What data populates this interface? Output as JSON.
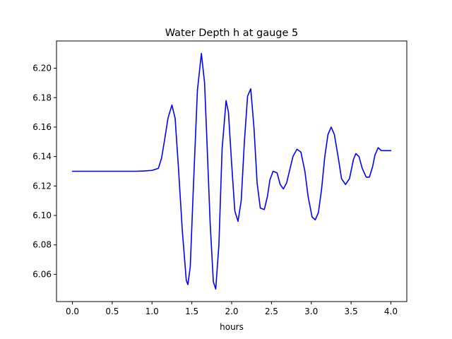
{
  "chart_data": {
    "type": "line",
    "title": "Water Depth h at gauge 5",
    "xlabel": "hours",
    "ylabel": "",
    "xlim": [
      -0.2,
      4.2
    ],
    "ylim": [
      6.0415,
      6.2185
    ],
    "xticks": [
      "0.0",
      "0.5",
      "1.0",
      "1.5",
      "2.0",
      "2.5",
      "3.0",
      "3.5",
      "4.0"
    ],
    "yticks": [
      "6.06",
      "6.08",
      "6.10",
      "6.12",
      "6.14",
      "6.16",
      "6.18",
      "6.20"
    ],
    "grid": false,
    "series": [
      {
        "color": "#0000ff",
        "x": [
          0.0,
          0.2,
          0.4,
          0.6,
          0.8,
          0.9,
          1.0,
          1.08,
          1.12,
          1.16,
          1.2,
          1.25,
          1.29,
          1.33,
          1.38,
          1.43,
          1.45,
          1.48,
          1.52,
          1.57,
          1.62,
          1.66,
          1.69,
          1.73,
          1.77,
          1.8,
          1.84,
          1.88,
          1.93,
          1.96,
          2.0,
          2.04,
          2.08,
          2.12,
          2.16,
          2.2,
          2.24,
          2.28,
          2.32,
          2.36,
          2.41,
          2.45,
          2.48,
          2.52,
          2.57,
          2.61,
          2.65,
          2.69,
          2.73,
          2.77,
          2.82,
          2.87,
          2.92,
          2.96,
          3.01,
          3.05,
          3.09,
          3.13,
          3.17,
          3.21,
          3.25,
          3.29,
          3.34,
          3.38,
          3.43,
          3.48,
          3.53,
          3.56,
          3.6,
          3.64,
          3.69,
          3.73,
          3.77,
          3.8,
          3.84,
          3.88,
          3.93,
          3.97,
          4.0
        ],
        "y": [
          6.13,
          6.13,
          6.13,
          6.13,
          6.13,
          6.1302,
          6.1306,
          6.132,
          6.139,
          6.152,
          6.166,
          6.175,
          6.166,
          6.134,
          6.09,
          6.056,
          6.053,
          6.065,
          6.12,
          6.185,
          6.21,
          6.19,
          6.15,
          6.095,
          6.055,
          6.05,
          6.08,
          6.145,
          6.178,
          6.17,
          6.135,
          6.103,
          6.096,
          6.11,
          6.15,
          6.181,
          6.186,
          6.16,
          6.122,
          6.105,
          6.104,
          6.113,
          6.124,
          6.13,
          6.129,
          6.121,
          6.118,
          6.122,
          6.131,
          6.14,
          6.145,
          6.143,
          6.13,
          6.113,
          6.099,
          6.097,
          6.102,
          6.118,
          6.14,
          6.155,
          6.16,
          6.155,
          6.139,
          6.125,
          6.121,
          6.125,
          6.138,
          6.142,
          6.14,
          6.132,
          6.126,
          6.126,
          6.133,
          6.141,
          6.146,
          6.144,
          6.144,
          6.144,
          6.144
        ]
      }
    ]
  }
}
